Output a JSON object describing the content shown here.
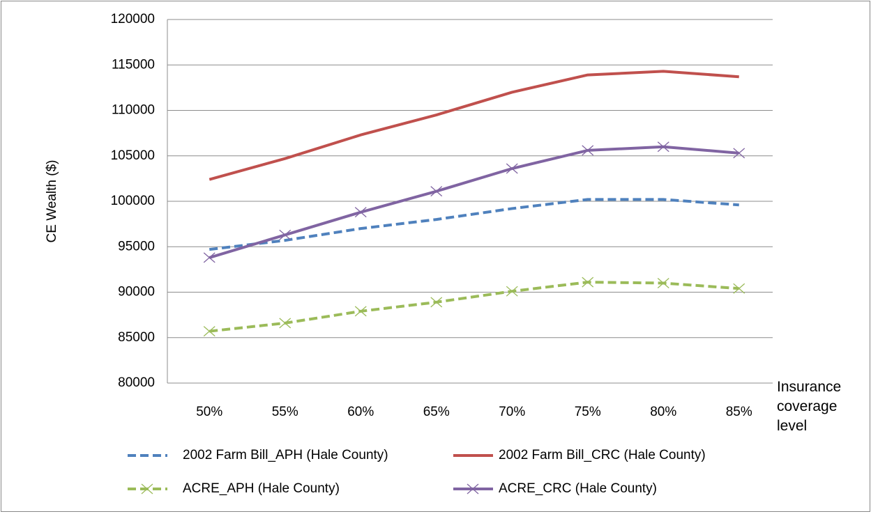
{
  "chart_data": {
    "type": "line",
    "y_label": "CE Wealth ($)",
    "x_label": "Insurance coverage level",
    "categories": [
      "50%",
      "55%",
      "60%",
      "65%",
      "70%",
      "75%",
      "80%",
      "85%"
    ],
    "series": [
      {
        "name": "2002 Farm Bill_APH (Hale County)",
        "color": "#4f81bd",
        "dash": true,
        "marker": "none",
        "values": [
          94700,
          95700,
          97000,
          98000,
          99200,
          100200,
          100200,
          99600
        ]
      },
      {
        "name": "2002 Farm Bill_CRC (Hale County)",
        "color": "#c0504d",
        "dash": false,
        "marker": "none",
        "values": [
          102400,
          104700,
          107300,
          109500,
          112000,
          113900,
          114300,
          113700
        ]
      },
      {
        "name": "ACRE_APH (Hale County)",
        "color": "#9bbb59",
        "dash": true,
        "marker": "x",
        "values": [
          85700,
          86600,
          87900,
          88900,
          90100,
          91100,
          91000,
          90400
        ]
      },
      {
        "name": "ACRE_CRC (Hale County)",
        "color": "#8064a2",
        "dash": false,
        "marker": "x",
        "values": [
          93800,
          96300,
          98800,
          101100,
          103600,
          105600,
          106000,
          105300
        ]
      }
    ],
    "ylim": [
      80000,
      120000
    ],
    "yticks": [
      80000,
      85000,
      90000,
      95000,
      100000,
      105000,
      110000,
      115000,
      120000
    ],
    "grid": true
  }
}
